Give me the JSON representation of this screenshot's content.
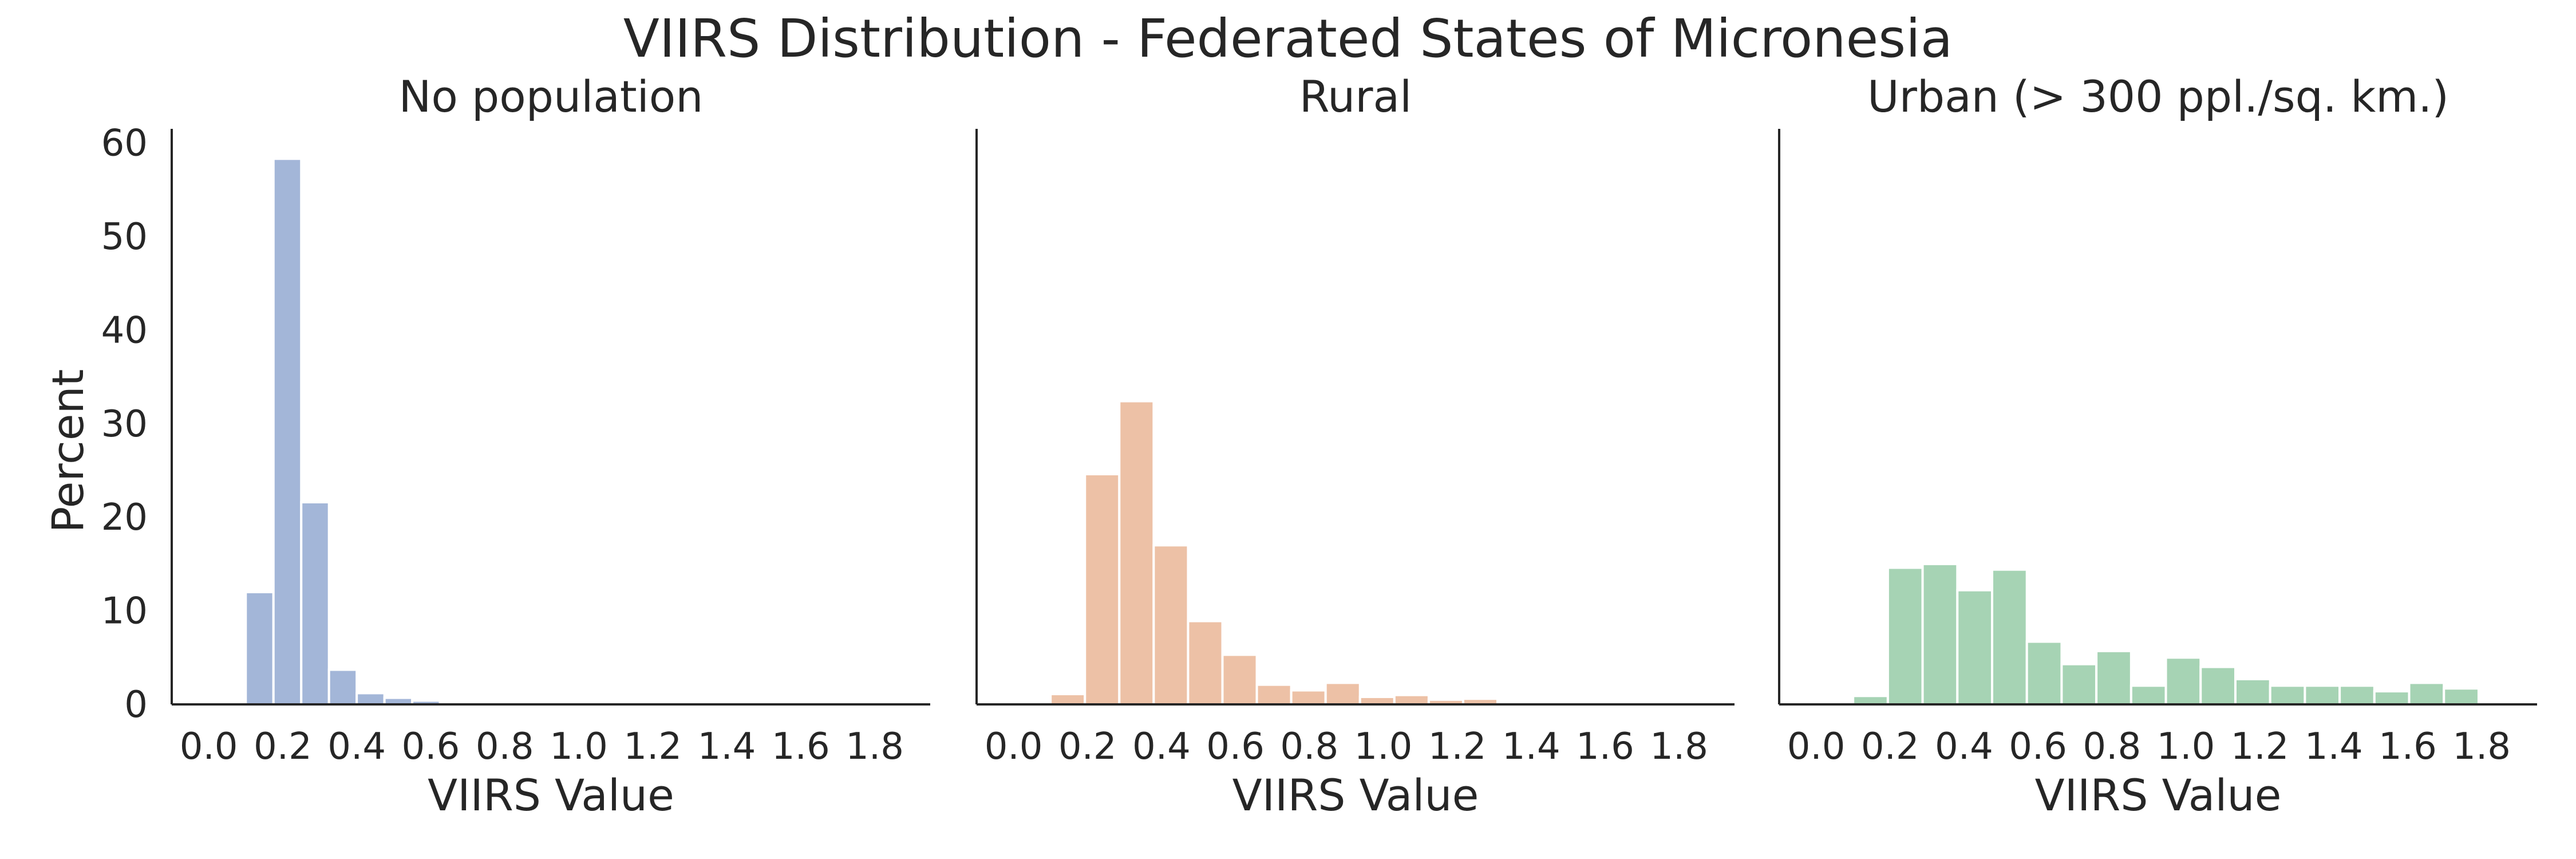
{
  "figure_title": "VIIRS Distribution - Federated States of Micronesia",
  "chart_data": [
    {
      "type": "bar",
      "title": "No population",
      "xlabel": "VIIRS Value",
      "ylabel": "Percent",
      "color": "#a3b6d8",
      "bin_width": 0.075,
      "bin_start": 0.1,
      "values": [
        12.0,
        58.3,
        21.6,
        3.7,
        1.2,
        0.7,
        0.4,
        0.2,
        0.1,
        0.05,
        0.05,
        0.03,
        0.02,
        0.02,
        0.02,
        0.01,
        0.01,
        0.01,
        0.01,
        0.01,
        0.01,
        0.01,
        0.01
      ],
      "xlim": [
        -0.1,
        1.95
      ],
      "ylim": [
        0,
        61.5
      ],
      "xticks": [
        "0.0",
        "0.2",
        "0.4",
        "0.6",
        "0.8",
        "1.0",
        "1.2",
        "1.4",
        "1.6",
        "1.8"
      ],
      "yticks": [
        "0",
        "10",
        "20",
        "30",
        "40",
        "50",
        "60"
      ]
    },
    {
      "type": "bar",
      "title": "Rural",
      "xlabel": "VIIRS Value",
      "ylabel": "",
      "color": "#edc1a6",
      "bin_width": 0.093,
      "bin_start": 0.1,
      "values": [
        1.1,
        24.6,
        32.4,
        17.0,
        8.9,
        5.3,
        2.1,
        1.5,
        2.3,
        0.8,
        1.0,
        0.5,
        0.6,
        0.2,
        0.05,
        0.05,
        0.03
      ],
      "xlim": [
        -0.1,
        1.95
      ],
      "ylim": [
        0,
        61.5
      ],
      "xticks": [
        "0.0",
        "0.2",
        "0.4",
        "0.6",
        "0.8",
        "1.0",
        "1.2",
        "1.4",
        "1.6",
        "1.8"
      ],
      "yticks": []
    },
    {
      "type": "bar",
      "title": "Urban (> 300 ppl./sq. km.)",
      "xlabel": "VIIRS Value",
      "ylabel": "",
      "color": "#a6d3b4",
      "bin_width": 0.094,
      "bin_start": 0.1,
      "values": [
        0.9,
        14.6,
        15.0,
        12.2,
        14.4,
        6.7,
        4.3,
        5.7,
        2.0,
        5.0,
        4.0,
        2.7,
        2.0,
        2.0,
        2.0,
        1.4,
        2.3,
        1.7
      ],
      "xlim": [
        -0.1,
        1.95
      ],
      "ylim": [
        0,
        61.5
      ],
      "xticks": [
        "0.0",
        "0.2",
        "0.4",
        "0.6",
        "0.8",
        "1.0",
        "1.2",
        "1.4",
        "1.6",
        "1.8"
      ],
      "yticks": []
    }
  ]
}
